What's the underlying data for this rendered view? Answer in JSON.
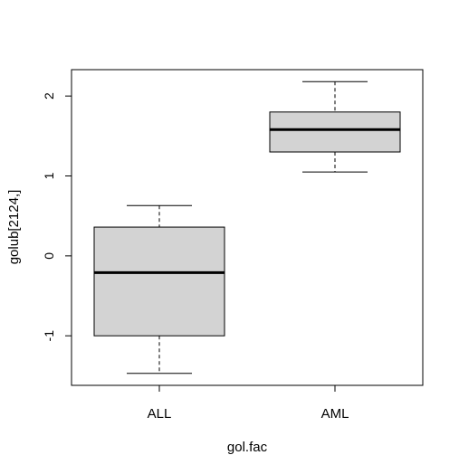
{
  "chart_data": {
    "type": "boxplot",
    "title": "",
    "xlabel": "gol.fac",
    "ylabel": "golub[2124,]",
    "categories": [
      "ALL",
      "AML"
    ],
    "boxes": [
      {
        "name": "ALL",
        "whisker_low": -1.47,
        "q1": -1.0,
        "median": -0.21,
        "q3": 0.36,
        "whisker_high": 0.63
      },
      {
        "name": "AML",
        "whisker_low": 1.05,
        "q1": 1.3,
        "median": 1.58,
        "q3": 1.8,
        "whisker_high": 2.18
      }
    ],
    "ylim": [
      -1.62,
      2.33
    ],
    "yticks": [
      -1,
      0,
      1,
      2
    ],
    "ytick_labels": [
      "-1",
      "0",
      "1",
      "2"
    ],
    "box_fill": "#d3d3d3",
    "grid": false
  }
}
